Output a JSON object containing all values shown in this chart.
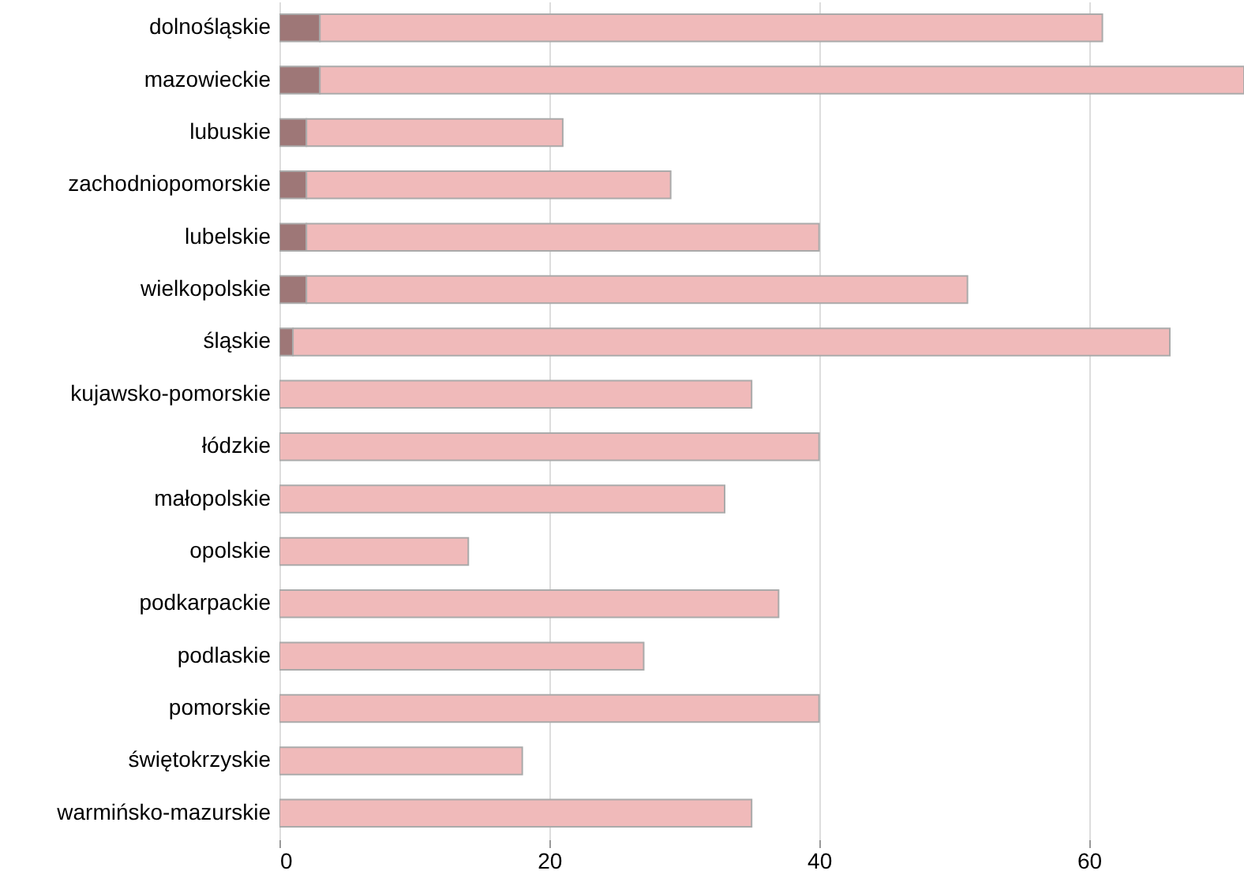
{
  "chart_data": {
    "type": "bar",
    "orientation": "horizontal",
    "stacked": true,
    "categories": [
      "dolnośląskie",
      "mazowieckie",
      "lubuskie",
      "zachodniopomorskie",
      "lubelskie",
      "wielkopolskie",
      "śląskie",
      "kujawsko-pomorskie",
      "łódzkie",
      "małopolskie",
      "opolskie",
      "podkarpackie",
      "podlaskie",
      "pomorskie",
      "świętokrzyskie",
      "warmińsko-mazurskie"
    ],
    "series": [
      {
        "color": "#9e7777",
        "values": [
          3,
          3,
          2,
          2,
          2,
          2,
          1,
          null,
          null,
          null,
          null,
          null,
          null,
          null,
          null,
          null
        ]
      },
      {
        "color": "#f0baba",
        "values": [
          58,
          68.5,
          19,
          27,
          38,
          49,
          65,
          35,
          40,
          33,
          14,
          37,
          27,
          40,
          18,
          35
        ]
      }
    ],
    "xlim": [
      0,
      71.5
    ],
    "xticks": [
      0,
      20,
      40,
      60
    ],
    "grid": "x"
  }
}
